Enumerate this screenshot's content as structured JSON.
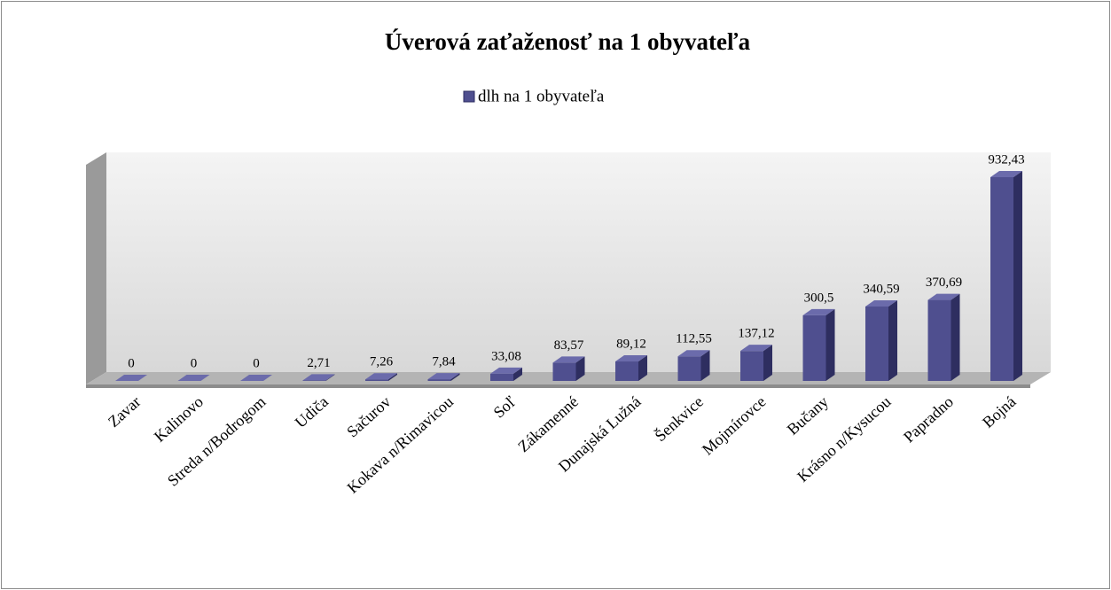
{
  "chart_data": {
    "type": "bar3d",
    "title": "Úverová zaťaženosť na 1 obyvateľa",
    "categories": [
      "Zavar",
      "Kalinovo",
      "Streda n/Bodrogom",
      "Udiča",
      "Sačurov",
      "Kokava n/Rimavicou",
      "Soľ",
      "Zákamenné",
      "Dunajská Lužná",
      "Šenkvice",
      "Mojmírovce",
      "Bučany",
      "Krásno n/Kysucou",
      "Papradno",
      "Bojná"
    ],
    "series": [
      {
        "name": "dlh na 1 obyvateľa",
        "color": "#4f4f8f",
        "values": [
          0,
          0,
          0,
          2.71,
          7.26,
          7.84,
          33.08,
          83.57,
          89.12,
          112.55,
          137.12,
          300.5,
          340.59,
          370.69,
          932.43
        ],
        "value_labels": [
          "0",
          "0",
          "0",
          "2,71",
          "7,26",
          "7,84",
          "33,08",
          "83,57",
          "89,12",
          "112,55",
          "137,12",
          "300,5",
          "340,59",
          "370,69",
          "932,43"
        ]
      }
    ],
    "legend": "top"
  }
}
